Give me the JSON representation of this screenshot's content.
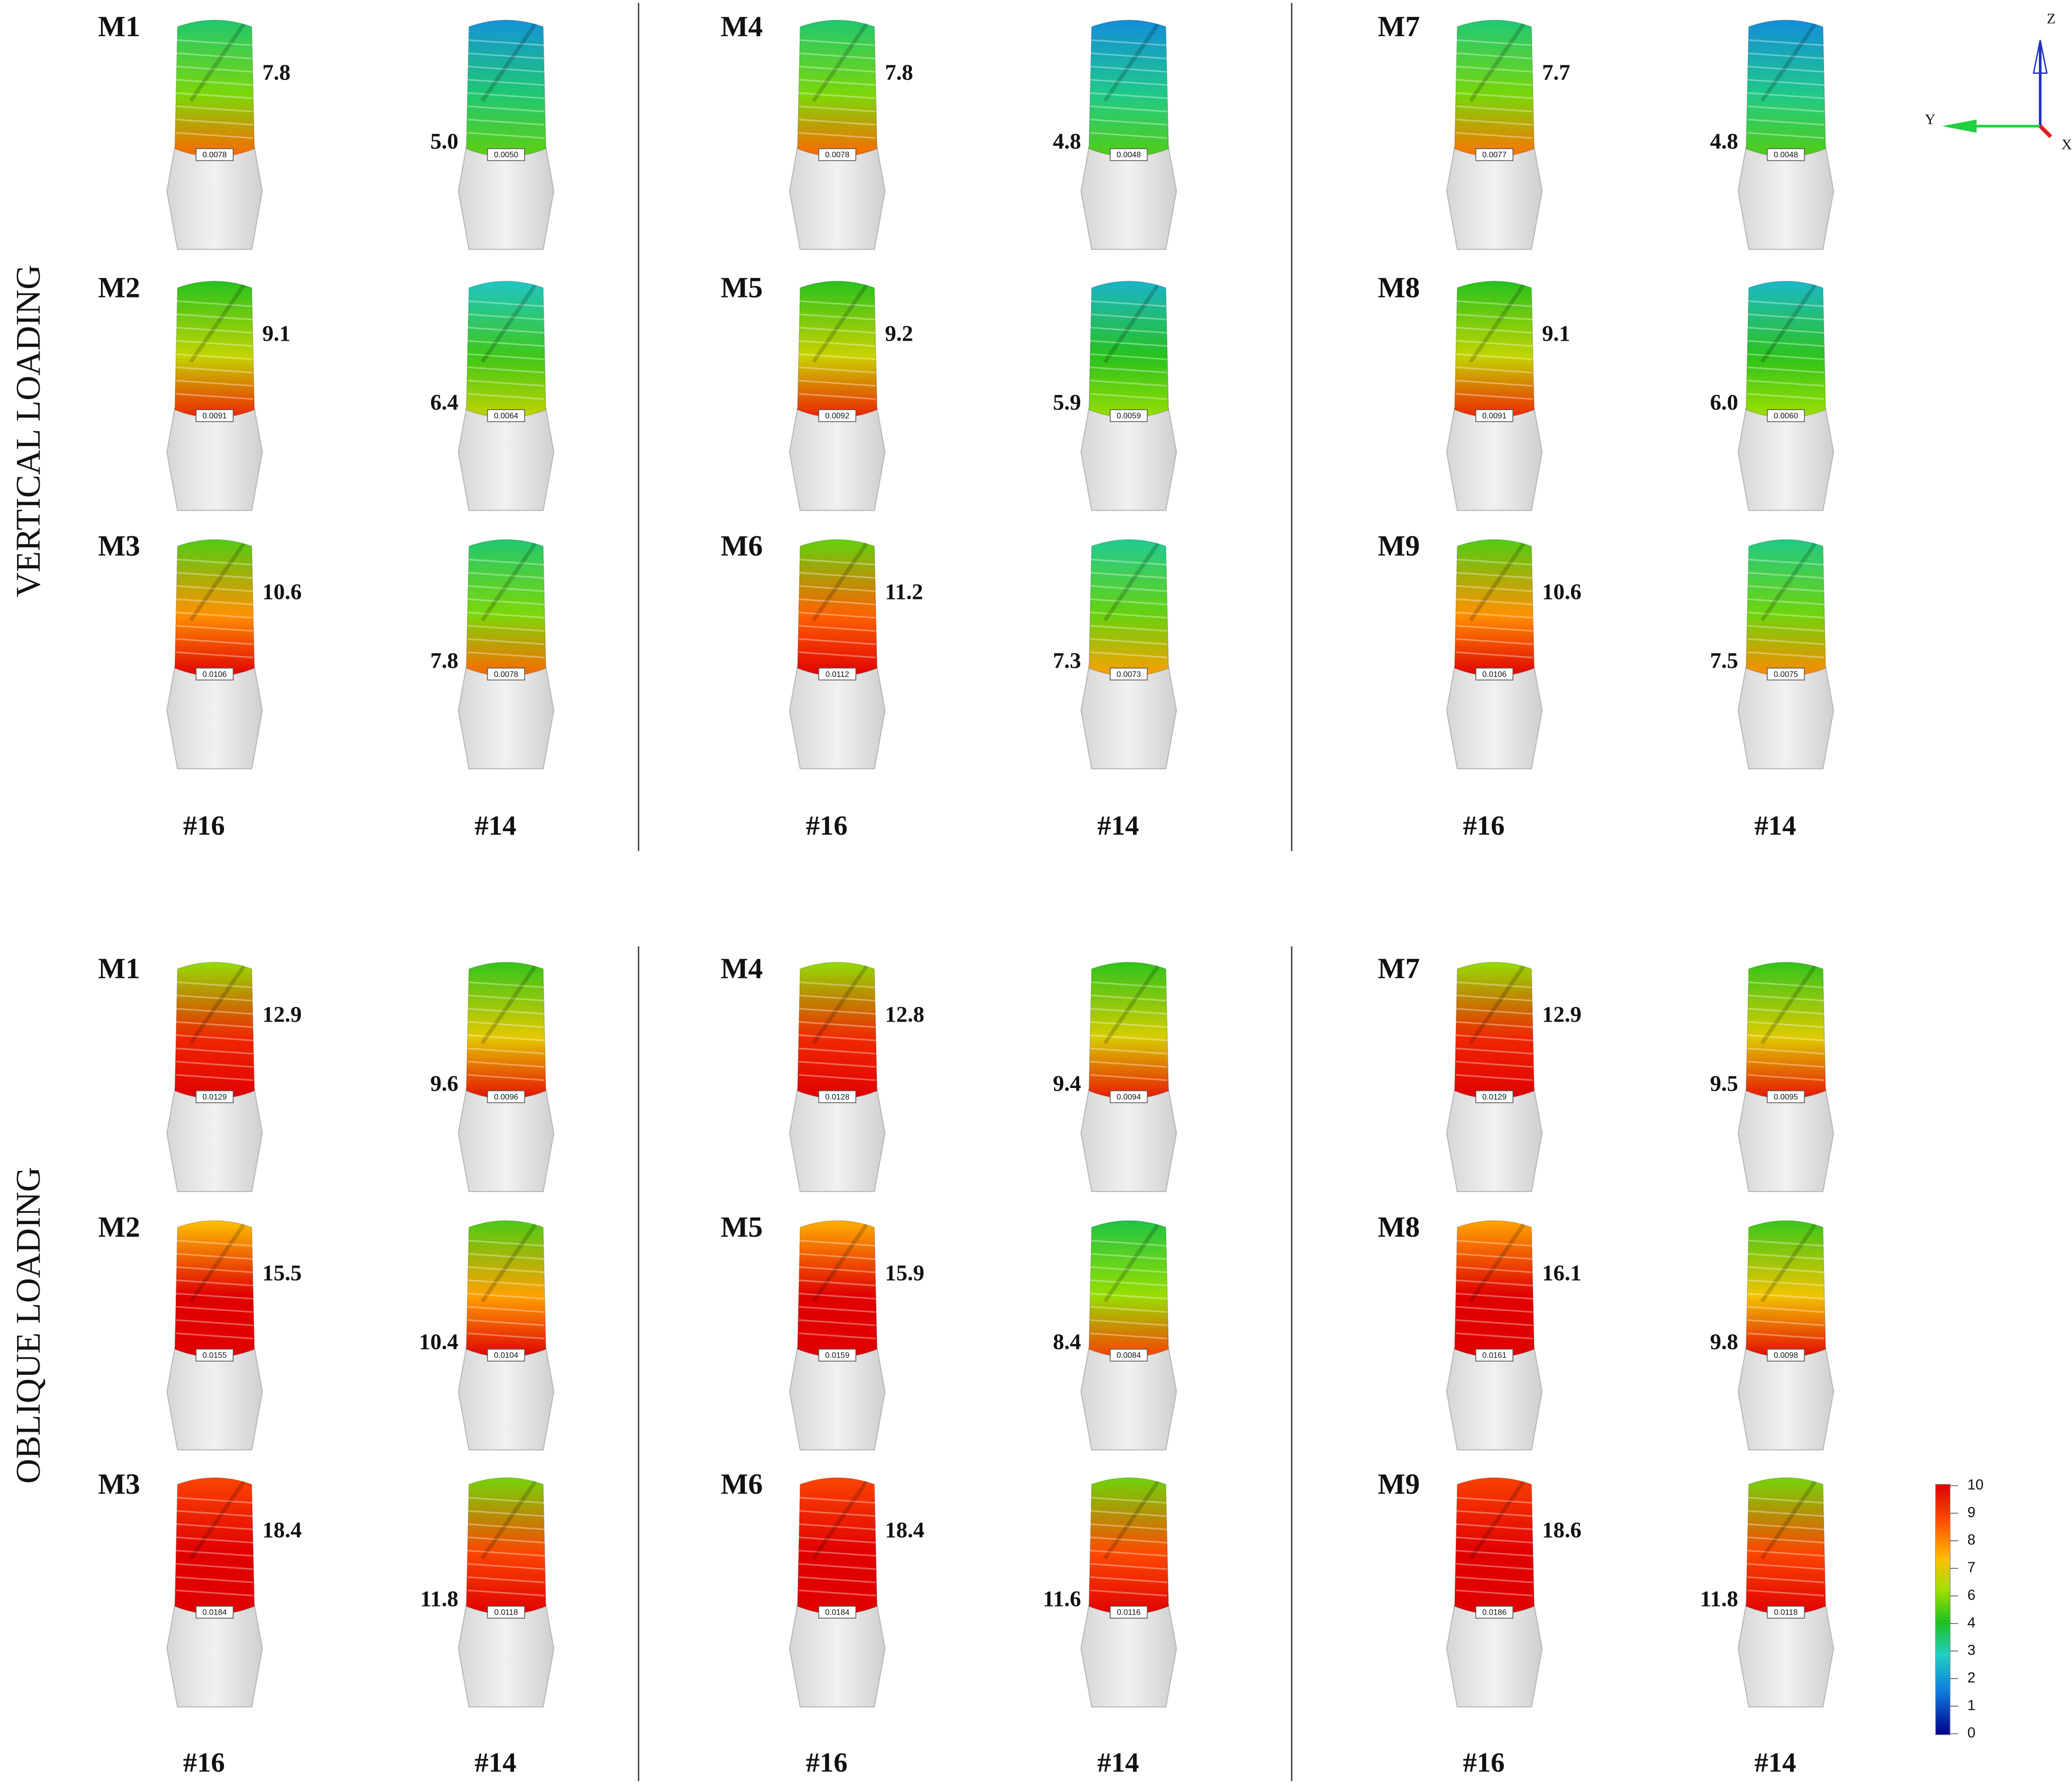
{
  "panels": [
    {
      "label": "VERTICAL LOADING",
      "groups": [
        {
          "site_labels": [
            "#16",
            "#14"
          ],
          "models": [
            {
              "name": "M1",
              "implants": [
                {
                  "stress": "7.8",
                  "box": "0.0078"
                },
                {
                  "stress": "5.0",
                  "box": "0.0050"
                }
              ]
            },
            {
              "name": "M2",
              "implants": [
                {
                  "stress": "9.1",
                  "box": "0.0091"
                },
                {
                  "stress": "6.4",
                  "box": "0.0064"
                }
              ]
            },
            {
              "name": "M3",
              "implants": [
                {
                  "stress": "10.6",
                  "box": "0.0106"
                },
                {
                  "stress": "7.8",
                  "box": "0.0078"
                }
              ]
            }
          ]
        },
        {
          "site_labels": [
            "#16",
            "#14"
          ],
          "models": [
            {
              "name": "M4",
              "implants": [
                {
                  "stress": "7.8",
                  "box": "0.0078"
                },
                {
                  "stress": "4.8",
                  "box": "0.0048"
                }
              ]
            },
            {
              "name": "M5",
              "implants": [
                {
                  "stress": "9.2",
                  "box": "0.0092"
                },
                {
                  "stress": "5.9",
                  "box": "0.0059"
                }
              ]
            },
            {
              "name": "M6",
              "implants": [
                {
                  "stress": "11.2",
                  "box": "0.0112"
                },
                {
                  "stress": "7.3",
                  "box": "0.0073"
                }
              ]
            }
          ]
        },
        {
          "site_labels": [
            "#16",
            "#14"
          ],
          "models": [
            {
              "name": "M7",
              "implants": [
                {
                  "stress": "7.7",
                  "box": "0.0077"
                },
                {
                  "stress": "4.8",
                  "box": "0.0048"
                }
              ]
            },
            {
              "name": "M8",
              "implants": [
                {
                  "stress": "9.1",
                  "box": "0.0091"
                },
                {
                  "stress": "6.0",
                  "box": "0.0060"
                }
              ]
            },
            {
              "name": "M9",
              "implants": [
                {
                  "stress": "10.6",
                  "box": "0.0106"
                },
                {
                  "stress": "7.5",
                  "box": "0.0075"
                }
              ]
            }
          ]
        }
      ]
    },
    {
      "label": "OBLIQUE LOADING",
      "groups": [
        {
          "site_labels": [
            "#16",
            "#14"
          ],
          "models": [
            {
              "name": "M1",
              "implants": [
                {
                  "stress": "12.9",
                  "box": "0.0129"
                },
                {
                  "stress": "9.6",
                  "box": "0.0096"
                }
              ]
            },
            {
              "name": "M2",
              "implants": [
                {
                  "stress": "15.5",
                  "box": "0.0155"
                },
                {
                  "stress": "10.4",
                  "box": "0.0104"
                }
              ]
            },
            {
              "name": "M3",
              "implants": [
                {
                  "stress": "18.4",
                  "box": "0.0184"
                },
                {
                  "stress": "11.8",
                  "box": "0.0118"
                }
              ]
            }
          ]
        },
        {
          "site_labels": [
            "#16",
            "#14"
          ],
          "models": [
            {
              "name": "M4",
              "implants": [
                {
                  "stress": "12.8",
                  "box": "0.0128"
                },
                {
                  "stress": "9.4",
                  "box": "0.0094"
                }
              ]
            },
            {
              "name": "M5",
              "implants": [
                {
                  "stress": "15.9",
                  "box": "0.0159"
                },
                {
                  "stress": "8.4",
                  "box": "0.0084"
                }
              ]
            },
            {
              "name": "M6",
              "implants": [
                {
                  "stress": "18.4",
                  "box": "0.0184"
                },
                {
                  "stress": "11.6",
                  "box": "0.0116"
                }
              ]
            }
          ]
        },
        {
          "site_labels": [
            "#16",
            "#14"
          ],
          "models": [
            {
              "name": "M7",
              "implants": [
                {
                  "stress": "12.9",
                  "box": "0.0129"
                },
                {
                  "stress": "9.5",
                  "box": "0.0095"
                }
              ]
            },
            {
              "name": "M8",
              "implants": [
                {
                  "stress": "16.1",
                  "box": "0.0161"
                },
                {
                  "stress": "9.8",
                  "box": "0.0098"
                }
              ]
            },
            {
              "name": "M9",
              "implants": [
                {
                  "stress": "18.6",
                  "box": "0.0186"
                },
                {
                  "stress": "11.8",
                  "box": "0.0118"
                }
              ]
            }
          ]
        }
      ]
    }
  ],
  "axes": {
    "z": "Z",
    "y": "Y",
    "x": "X"
  },
  "color_scale": {
    "ticks": [
      "10",
      "9",
      "8",
      "7",
      "6",
      "4",
      "3",
      "2",
      "1",
      "0"
    ]
  }
}
